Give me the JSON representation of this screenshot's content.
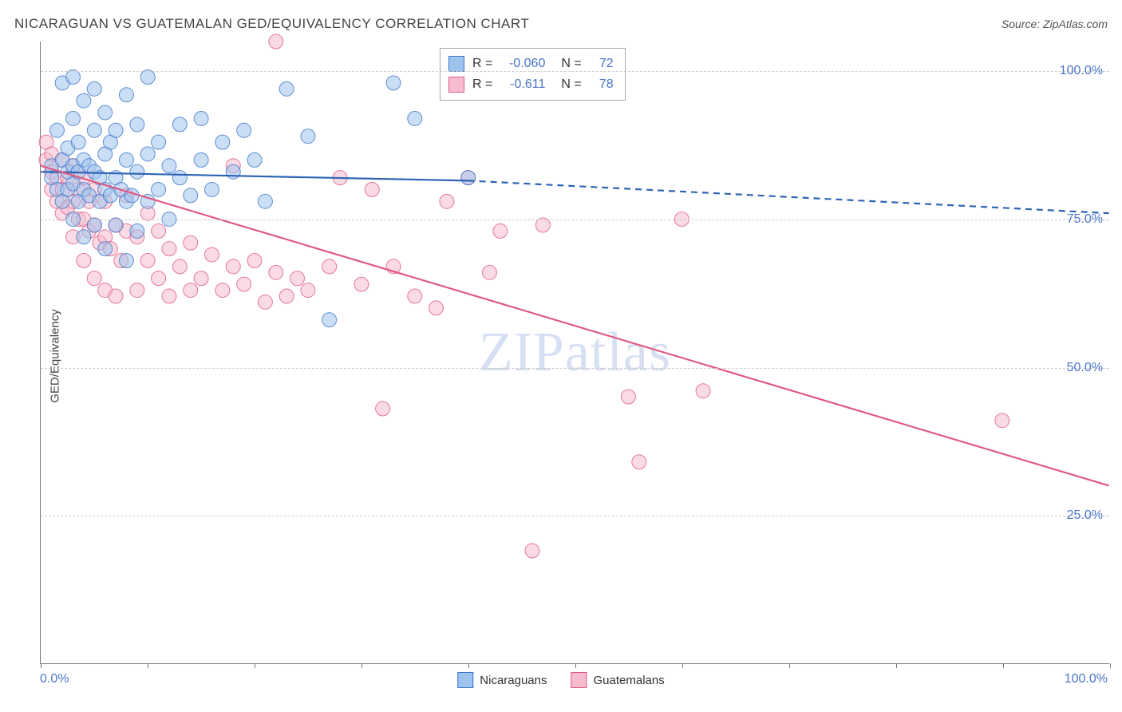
{
  "title": "NICARAGUAN VS GUATEMALAN GED/EQUIVALENCY CORRELATION CHART",
  "source_label": "Source: ZipAtlas.com",
  "watermark": "ZIPatlas",
  "ylabel": "GED/Equivalency",
  "chart": {
    "type": "scatter",
    "plot_bg": "#ffffff",
    "grid_color": "#cccccc",
    "grid_dash": "4,4",
    "axis_color": "#777777",
    "xlim": [
      0,
      100
    ],
    "ylim": [
      0,
      105
    ],
    "xtick_positions": [
      0,
      10,
      20,
      30,
      40,
      50,
      60,
      70,
      80,
      90,
      100
    ],
    "xaxis_start_label": "0.0%",
    "xaxis_end_label": "100.0%",
    "ytick_labels": [
      {
        "v": 25,
        "label": "25.0%"
      },
      {
        "v": 50,
        "label": "50.0%"
      },
      {
        "v": 75,
        "label": "75.0%"
      },
      {
        "v": 100,
        "label": "100.0%"
      }
    ],
    "label_color": "#4a74c9",
    "label_fontsize": 16,
    "marker_radius": 9,
    "marker_opacity": 0.55,
    "marker_stroke_opacity": 0.8,
    "series": [
      {
        "name": "Nicaraguans",
        "fill": "#9ec3ed",
        "stroke": "#3f76c7",
        "R": "-0.060",
        "N": "72",
        "trend": {
          "solid": {
            "x1": 0,
            "y1": 83,
            "x2": 40,
            "y2": 81.5
          },
          "dashed": {
            "x1": 40,
            "y1": 81.5,
            "x2": 100,
            "y2": 76
          },
          "stroke_width": 2.2,
          "color": "#2d64b5"
        },
        "points": [
          [
            1,
            82
          ],
          [
            1,
            84
          ],
          [
            1.5,
            80
          ],
          [
            1.5,
            90
          ],
          [
            2,
            78
          ],
          [
            2,
            85
          ],
          [
            2,
            98
          ],
          [
            2.5,
            80
          ],
          [
            2.5,
            83
          ],
          [
            2.5,
            87
          ],
          [
            3,
            75
          ],
          [
            3,
            81
          ],
          [
            3,
            84
          ],
          [
            3,
            92
          ],
          [
            3,
            99
          ],
          [
            3.5,
            78
          ],
          [
            3.5,
            83
          ],
          [
            3.5,
            88
          ],
          [
            4,
            72
          ],
          [
            4,
            80
          ],
          [
            4,
            85
          ],
          [
            4,
            95
          ],
          [
            4.5,
            79
          ],
          [
            4.5,
            84
          ],
          [
            5,
            74
          ],
          [
            5,
            83
          ],
          [
            5,
            90
          ],
          [
            5,
            97
          ],
          [
            5.5,
            78
          ],
          [
            5.5,
            82
          ],
          [
            6,
            70
          ],
          [
            6,
            80
          ],
          [
            6,
            86
          ],
          [
            6,
            93
          ],
          [
            6.5,
            79
          ],
          [
            6.5,
            88
          ],
          [
            7,
            74
          ],
          [
            7,
            82
          ],
          [
            7,
            90
          ],
          [
            7.5,
            80
          ],
          [
            8,
            68
          ],
          [
            8,
            78
          ],
          [
            8,
            85
          ],
          [
            8,
            96
          ],
          [
            8.5,
            79
          ],
          [
            9,
            73
          ],
          [
            9,
            83
          ],
          [
            9,
            91
          ],
          [
            10,
            78
          ],
          [
            10,
            86
          ],
          [
            10,
            99
          ],
          [
            11,
            80
          ],
          [
            11,
            88
          ],
          [
            12,
            75
          ],
          [
            12,
            84
          ],
          [
            13,
            82
          ],
          [
            13,
            91
          ],
          [
            14,
            79
          ],
          [
            15,
            85
          ],
          [
            15,
            92
          ],
          [
            16,
            80
          ],
          [
            17,
            88
          ],
          [
            18,
            83
          ],
          [
            19,
            90
          ],
          [
            20,
            85
          ],
          [
            21,
            78
          ],
          [
            23,
            97
          ],
          [
            25,
            89
          ],
          [
            27,
            58
          ],
          [
            33,
            98
          ],
          [
            35,
            92
          ],
          [
            40,
            82
          ]
        ]
      },
      {
        "name": "Guatemalans",
        "fill": "#f6bccd",
        "stroke": "#e05a84",
        "R": "-0.611",
        "N": "78",
        "trend": {
          "solid": {
            "x1": 0,
            "y1": 84,
            "x2": 100,
            "y2": 30
          },
          "dashed": null,
          "stroke_width": 2.2,
          "color": "#e05a84"
        },
        "points": [
          [
            0.5,
            85
          ],
          [
            0.5,
            88
          ],
          [
            1,
            80
          ],
          [
            1,
            83
          ],
          [
            1,
            86
          ],
          [
            1.5,
            78
          ],
          [
            1.5,
            82
          ],
          [
            2,
            76
          ],
          [
            2,
            80
          ],
          [
            2,
            85
          ],
          [
            2.5,
            77
          ],
          [
            2.5,
            82
          ],
          [
            3,
            72
          ],
          [
            3,
            78
          ],
          [
            3,
            84
          ],
          [
            3.5,
            75
          ],
          [
            3.5,
            80
          ],
          [
            4,
            68
          ],
          [
            4,
            75
          ],
          [
            4,
            82
          ],
          [
            4.5,
            73
          ],
          [
            4.5,
            78
          ],
          [
            5,
            65
          ],
          [
            5,
            74
          ],
          [
            5,
            80
          ],
          [
            5.5,
            71
          ],
          [
            6,
            63
          ],
          [
            6,
            72
          ],
          [
            6,
            78
          ],
          [
            6.5,
            70
          ],
          [
            7,
            62
          ],
          [
            7,
            74
          ],
          [
            7.5,
            68
          ],
          [
            8,
            73
          ],
          [
            8,
            79
          ],
          [
            9,
            63
          ],
          [
            9,
            72
          ],
          [
            10,
            68
          ],
          [
            10,
            76
          ],
          [
            11,
            65
          ],
          [
            11,
            73
          ],
          [
            12,
            62
          ],
          [
            12,
            70
          ],
          [
            13,
            67
          ],
          [
            14,
            63
          ],
          [
            14,
            71
          ],
          [
            15,
            65
          ],
          [
            16,
            69
          ],
          [
            17,
            63
          ],
          [
            18,
            67
          ],
          [
            18,
            84
          ],
          [
            19,
            64
          ],
          [
            20,
            68
          ],
          [
            21,
            61
          ],
          [
            22,
            66
          ],
          [
            22,
            105
          ],
          [
            23,
            62
          ],
          [
            24,
            65
          ],
          [
            25,
            63
          ],
          [
            27,
            67
          ],
          [
            28,
            82
          ],
          [
            30,
            64
          ],
          [
            31,
            80
          ],
          [
            32,
            43
          ],
          [
            33,
            67
          ],
          [
            35,
            62
          ],
          [
            37,
            60
          ],
          [
            38,
            78
          ],
          [
            40,
            82
          ],
          [
            42,
            66
          ],
          [
            43,
            73
          ],
          [
            46,
            19
          ],
          [
            47,
            74
          ],
          [
            55,
            45
          ],
          [
            56,
            34
          ],
          [
            60,
            75
          ],
          [
            62,
            46
          ],
          [
            90,
            41
          ]
        ]
      }
    ],
    "legend_bottom": [
      {
        "label": "Nicaraguans",
        "fill": "#9ec3ed",
        "stroke": "#3f76c7"
      },
      {
        "label": "Guatemalans",
        "fill": "#f6bccd",
        "stroke": "#e05a84"
      }
    ]
  }
}
